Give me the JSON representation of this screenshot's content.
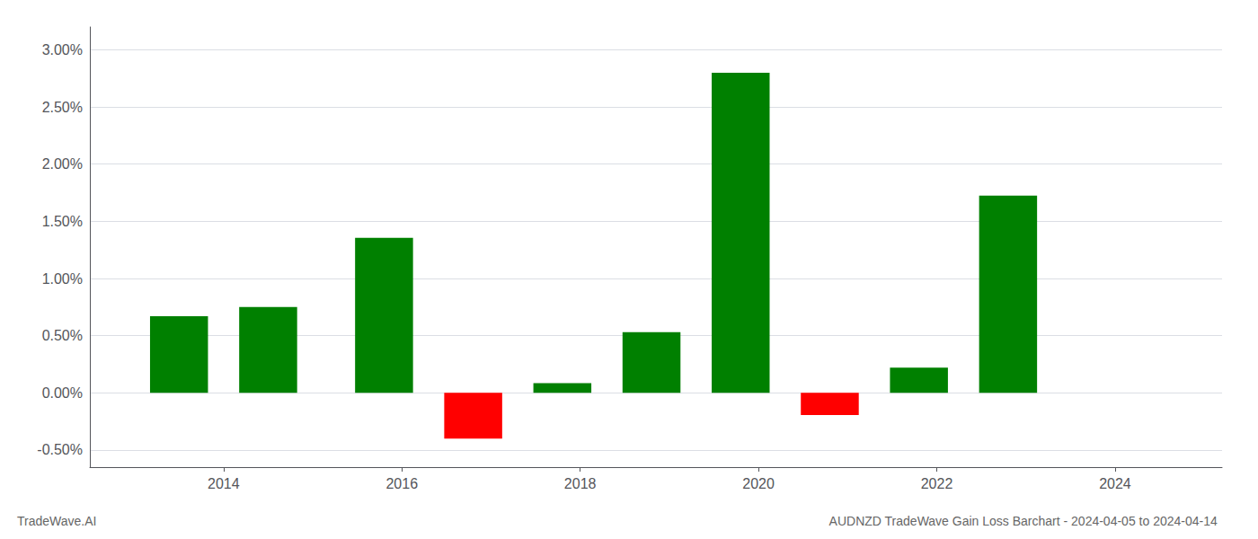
{
  "chart_data": {
    "type": "bar",
    "title": "AUDNZD TradeWave Gain Loss Barchart - 2024-04-05 to 2024-04-14",
    "annotations": [
      "TradeWave.AI"
    ],
    "x": [
      2013.5,
      2014.5,
      2015.8,
      2016.8,
      2017.8,
      2018.8,
      2019.8,
      2020.8,
      2021.8,
      2022.8
    ],
    "values": [
      0.0067,
      0.0075,
      0.01355,
      -0.004,
      0.00085,
      0.0053,
      0.028,
      -0.00195,
      0.0022,
      0.01725
    ],
    "colors": [
      "#008000",
      "#008000",
      "#008000",
      "#ff0000",
      "#008000",
      "#008000",
      "#008000",
      "#ff0000",
      "#008000",
      "#008000"
    ],
    "xlim": [
      2012.5,
      2025.2
    ],
    "xticks": [
      2014,
      2016,
      2018,
      2020,
      2022,
      2024
    ],
    "ylim": [
      -0.0065,
      0.032
    ],
    "yticks": [
      {
        "value": -0.005,
        "label": "-0.50%"
      },
      {
        "value": 0.0,
        "label": "0.00%"
      },
      {
        "value": 0.005,
        "label": "0.50%"
      },
      {
        "value": 0.01,
        "label": "1.00%"
      },
      {
        "value": 0.015,
        "label": "1.50%"
      },
      {
        "value": 0.02,
        "label": "2.00%"
      },
      {
        "value": 0.025,
        "label": "2.50%"
      },
      {
        "value": 0.03,
        "label": "3.00%"
      }
    ],
    "grid": true
  }
}
